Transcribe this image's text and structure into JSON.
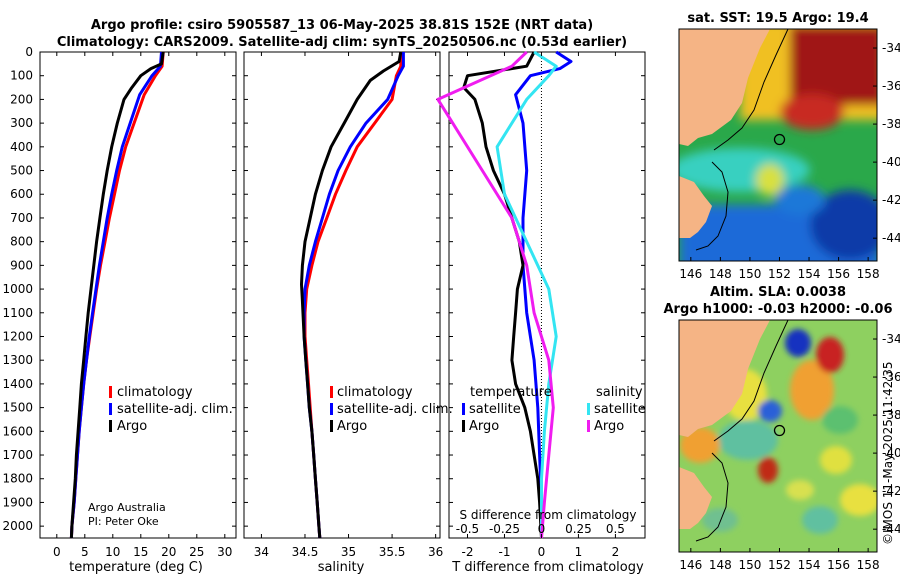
{
  "header": {
    "title_line1": "Argo profile: csiro 5905587_13 06-May-2025 38.81S 152E (NRT data)",
    "title_line2": "Climatology: CARS2009. Satellite-adj clim: synTS_20250506.nc (0.53d earlier)"
  },
  "credits": {
    "line1": "Argo Australia",
    "line2": "PI: Peter Oke"
  },
  "stamp": "©IMOS 11-May-2025 11:42:35",
  "colors": {
    "climatology": "#ff0000",
    "satellite": "#0000ff",
    "argo": "#000000",
    "sal_satellite": "#33e5f2",
    "sal_argo": "#f01cf0"
  },
  "chart_data": [
    {
      "type": "line",
      "name": "temperature-profile",
      "xlabel": "temperature (deg C)",
      "xlim": [
        -3,
        32
      ],
      "ylim": [
        0,
        2050
      ],
      "y_inverted": true,
      "xticks": [
        0,
        5,
        10,
        15,
        20,
        25,
        30
      ],
      "yticks": [
        0,
        100,
        200,
        300,
        400,
        500,
        600,
        700,
        800,
        900,
        1000,
        1100,
        1200,
        1300,
        1400,
        1500,
        1600,
        1700,
        1800,
        1900,
        2000
      ],
      "legend": [
        "climatology",
        "satellite-adj. clim.",
        "Argo"
      ],
      "series": [
        {
          "name": "climatology",
          "color": "#ff0000",
          "points": [
            [
              19.0,
              0
            ],
            [
              18.8,
              60
            ],
            [
              17.6,
              100
            ],
            [
              15.6,
              180
            ],
            [
              13.8,
              300
            ],
            [
              12.3,
              400
            ],
            [
              11.2,
              500
            ],
            [
              10.3,
              600
            ],
            [
              9.4,
              700
            ],
            [
              8.6,
              800
            ],
            [
              7.8,
              900
            ],
            [
              7.1,
              1000
            ],
            [
              6.5,
              1100
            ],
            [
              5.9,
              1200
            ],
            [
              5.3,
              1300
            ],
            [
              4.8,
              1400
            ],
            [
              4.4,
              1500
            ],
            [
              4.0,
              1600
            ],
            [
              3.7,
              1700
            ],
            [
              3.4,
              1800
            ],
            [
              3.1,
              1900
            ],
            [
              2.7,
              2000
            ],
            [
              2.6,
              2050
            ]
          ]
        },
        {
          "name": "satellite-adj. clim.",
          "color": "#0000ff",
          "points": [
            [
              18.7,
              0
            ],
            [
              18.5,
              60
            ],
            [
              17.0,
              100
            ],
            [
              14.8,
              180
            ],
            [
              13.1,
              300
            ],
            [
              11.7,
              400
            ],
            [
              10.7,
              500
            ],
            [
              9.8,
              600
            ],
            [
              9.0,
              700
            ],
            [
              8.3,
              800
            ],
            [
              7.6,
              900
            ],
            [
              7.0,
              1000
            ],
            [
              6.4,
              1100
            ],
            [
              5.8,
              1200
            ],
            [
              5.3,
              1300
            ],
            [
              4.8,
              1400
            ],
            [
              4.4,
              1500
            ],
            [
              4.0,
              1600
            ],
            [
              3.7,
              1700
            ],
            [
              3.4,
              1800
            ],
            [
              3.1,
              1900
            ],
            [
              2.7,
              2000
            ],
            [
              2.6,
              2050
            ]
          ]
        },
        {
          "name": "Argo",
          "color": "#000000",
          "points": [
            [
              19.0,
              0
            ],
            [
              18.7,
              50
            ],
            [
              16.8,
              70
            ],
            [
              15.0,
              100
            ],
            [
              13.4,
              150
            ],
            [
              12.0,
              200
            ],
            [
              10.8,
              300
            ],
            [
              9.8,
              400
            ],
            [
              9.0,
              500
            ],
            [
              8.3,
              600
            ],
            [
              7.7,
              700
            ],
            [
              7.1,
              800
            ],
            [
              6.6,
              900
            ],
            [
              6.1,
              1000
            ],
            [
              5.6,
              1100
            ],
            [
              5.2,
              1200
            ],
            [
              4.8,
              1300
            ],
            [
              4.4,
              1400
            ],
            [
              4.1,
              1500
            ],
            [
              3.8,
              1600
            ],
            [
              3.5,
              1700
            ],
            [
              3.3,
              1800
            ],
            [
              3.0,
              1900
            ],
            [
              2.7,
              2000
            ],
            [
              2.6,
              2050
            ]
          ]
        }
      ]
    },
    {
      "type": "line",
      "name": "salinity-profile",
      "xlabel": "salinity",
      "xlim": [
        33.8,
        36.05
      ],
      "ylim": [
        0,
        2050
      ],
      "y_inverted": true,
      "xticks": [
        34,
        34.5,
        35,
        35.5,
        36
      ],
      "series": [
        {
          "name": "climatology",
          "color": "#ff0000",
          "points": [
            [
              35.6,
              0
            ],
            [
              35.6,
              60
            ],
            [
              35.55,
              100
            ],
            [
              35.5,
              200
            ],
            [
              35.3,
              300
            ],
            [
              35.1,
              400
            ],
            [
              34.97,
              500
            ],
            [
              34.85,
              600
            ],
            [
              34.75,
              700
            ],
            [
              34.65,
              800
            ],
            [
              34.58,
              900
            ],
            [
              34.52,
              1000
            ],
            [
              34.5,
              1100
            ],
            [
              34.5,
              1200
            ],
            [
              34.52,
              1300
            ],
            [
              34.54,
              1400
            ],
            [
              34.56,
              1500
            ],
            [
              34.58,
              1600
            ],
            [
              34.6,
              1700
            ],
            [
              34.62,
              1800
            ],
            [
              34.64,
              1900
            ],
            [
              34.66,
              2000
            ],
            [
              34.67,
              2050
            ]
          ]
        },
        {
          "name": "satellite-adj. clim.",
          "color": "#0000ff",
          "points": [
            [
              35.63,
              0
            ],
            [
              35.63,
              60
            ],
            [
              35.57,
              100
            ],
            [
              35.45,
              200
            ],
            [
              35.2,
              300
            ],
            [
              35.02,
              400
            ],
            [
              34.88,
              500
            ],
            [
              34.78,
              600
            ],
            [
              34.7,
              700
            ],
            [
              34.62,
              800
            ],
            [
              34.55,
              900
            ],
            [
              34.5,
              1000
            ],
            [
              34.49,
              1100
            ],
            [
              34.49,
              1200
            ],
            [
              34.51,
              1300
            ],
            [
              34.53,
              1400
            ],
            [
              34.55,
              1500
            ],
            [
              34.58,
              1600
            ],
            [
              34.6,
              1700
            ],
            [
              34.62,
              1800
            ],
            [
              34.64,
              1900
            ],
            [
              34.66,
              2000
            ],
            [
              34.67,
              2050
            ]
          ]
        },
        {
          "name": "Argo",
          "color": "#000000",
          "points": [
            [
              35.6,
              0
            ],
            [
              35.58,
              40
            ],
            [
              35.4,
              80
            ],
            [
              35.25,
              120
            ],
            [
              35.1,
              200
            ],
            [
              34.95,
              300
            ],
            [
              34.8,
              400
            ],
            [
              34.7,
              500
            ],
            [
              34.62,
              600
            ],
            [
              34.56,
              700
            ],
            [
              34.5,
              800
            ],
            [
              34.47,
              900
            ],
            [
              34.46,
              980
            ],
            [
              34.47,
              1050
            ],
            [
              34.49,
              1200
            ],
            [
              34.51,
              1300
            ],
            [
              34.53,
              1400
            ],
            [
              34.55,
              1500
            ],
            [
              34.58,
              1600
            ],
            [
              34.6,
              1700
            ],
            [
              34.62,
              1800
            ],
            [
              34.64,
              1900
            ],
            [
              34.66,
              2000
            ],
            [
              34.67,
              2050
            ]
          ]
        }
      ]
    },
    {
      "type": "line",
      "name": "difference-profile",
      "xlabel": "T difference from climatology",
      "xlabel_top": "S difference from climatology",
      "xlim": [
        -2.5,
        2.8
      ],
      "s_xlim": [
        -0.625,
        0.7
      ],
      "ylim": [
        0,
        2050
      ],
      "y_inverted": true,
      "xticks": [
        -2,
        -1,
        0,
        1,
        2
      ],
      "s_ticks": [
        "-0.5",
        "-0.25",
        "0",
        "0.25",
        "0.5"
      ],
      "legend_t_title": "temperature",
      "legend_s_title": "salinity",
      "legend_t": [
        "satellite",
        "Argo"
      ],
      "legend_s": [
        "satellite",
        "Argo"
      ],
      "series": [
        {
          "name": "T satellite",
          "color": "#0000ff",
          "points": [
            [
              0.4,
              0
            ],
            [
              0.8,
              40
            ],
            [
              0.5,
              70
            ],
            [
              -0.3,
              100
            ],
            [
              -0.7,
              180
            ],
            [
              -0.5,
              300
            ],
            [
              -0.4,
              500
            ],
            [
              -0.5,
              700
            ],
            [
              -0.5,
              900
            ],
            [
              -0.4,
              1100
            ],
            [
              -0.2,
              1300
            ],
            [
              -0.1,
              1500
            ],
            [
              -0.05,
              1700
            ],
            [
              0,
              1900
            ],
            [
              0,
              2050
            ]
          ]
        },
        {
          "name": "T Argo",
          "color": "#000000",
          "points": [
            [
              -0.2,
              0
            ],
            [
              -0.4,
              60
            ],
            [
              -2.0,
              100
            ],
            [
              -2.1,
              150
            ],
            [
              -1.8,
              200
            ],
            [
              -1.6,
              300
            ],
            [
              -1.5,
              400
            ],
            [
              -1.3,
              500
            ],
            [
              -1.0,
              600
            ],
            [
              -0.8,
              700
            ],
            [
              -0.6,
              800
            ],
            [
              -0.5,
              900
            ],
            [
              -0.65,
              1000
            ],
            [
              -0.7,
              1100
            ],
            [
              -0.75,
              1200
            ],
            [
              -0.8,
              1300
            ],
            [
              -0.7,
              1400
            ],
            [
              -0.45,
              1500
            ],
            [
              -0.3,
              1600
            ],
            [
              -0.2,
              1700
            ],
            [
              -0.1,
              1800
            ],
            [
              -0.05,
              1900
            ],
            [
              0,
              2050
            ]
          ]
        },
        {
          "name": "S satellite",
          "color": "#33e5f2",
          "points": [
            [
              -0.05,
              0
            ],
            [
              0.1,
              60
            ],
            [
              0.05,
              100
            ],
            [
              -0.1,
              200
            ],
            [
              -0.3,
              400
            ],
            [
              -0.25,
              600
            ],
            [
              -0.1,
              800
            ],
            [
              0.05,
              1000
            ],
            [
              0.1,
              1200
            ],
            [
              0.05,
              1400
            ],
            [
              0.02,
              1600
            ],
            [
              0,
              1800
            ],
            [
              0,
              2050
            ]
          ]
        },
        {
          "name": "S Argo",
          "color": "#f01cf0",
          "points": [
            [
              -0.1,
              0
            ],
            [
              -0.2,
              60
            ],
            [
              -0.7,
              200
            ],
            [
              -0.6,
              300
            ],
            [
              -0.4,
              500
            ],
            [
              -0.2,
              700
            ],
            [
              -0.1,
              900
            ],
            [
              -0.05,
              1100
            ],
            [
              0.05,
              1300
            ],
            [
              0.08,
              1500
            ],
            [
              0.05,
              1700
            ],
            [
              0.02,
              1900
            ],
            [
              0,
              2050
            ]
          ]
        }
      ]
    },
    {
      "type": "heatmap",
      "name": "sst-map",
      "title": "sat. SST: 19.5 Argo: 19.4",
      "xlim": [
        145.2,
        158.6
      ],
      "ylim": [
        -45.2,
        -33.0
      ],
      "xticks": [
        146,
        148,
        150,
        152,
        154,
        156,
        158
      ],
      "yticks": [
        -34,
        -36,
        -38,
        -40,
        -42,
        -44
      ],
      "argo_position": [
        152.0,
        -38.81
      ]
    },
    {
      "type": "heatmap",
      "name": "sla-map",
      "title_line1": "Altim. SLA: 0.0038",
      "title_line2": "Argo h1000: -0.03 h2000: -0.06",
      "xlim": [
        145.2,
        158.6
      ],
      "ylim": [
        -45.2,
        -33.0
      ],
      "xticks": [
        146,
        148,
        150,
        152,
        154,
        156,
        158
      ],
      "yticks": [
        -34,
        -36,
        -38,
        -40,
        -42,
        -44
      ],
      "argo_position": [
        152.0,
        -38.81
      ]
    }
  ]
}
